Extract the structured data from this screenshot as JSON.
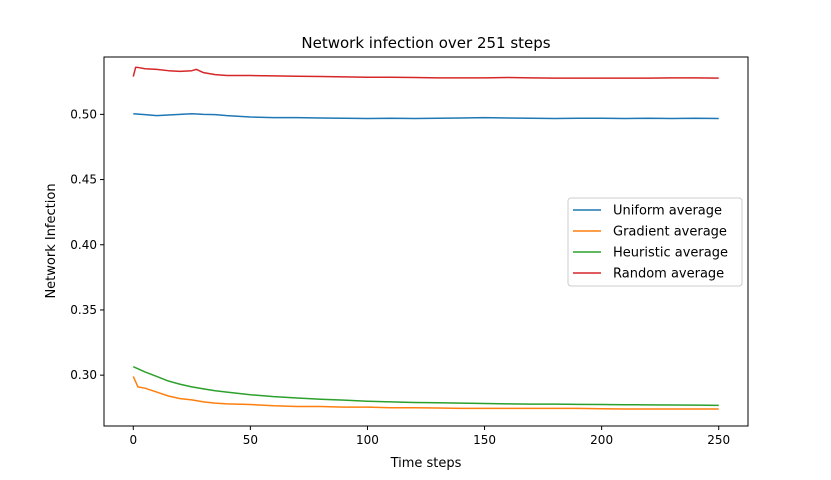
{
  "chart_data": {
    "type": "line",
    "title": "Network infection over 251 steps",
    "xlabel": "Time steps",
    "ylabel": "Network Infection",
    "xlim": [
      -12.5,
      262.5
    ],
    "ylim": [
      0.261,
      0.544
    ],
    "xticks": [
      0,
      50,
      100,
      150,
      200,
      250
    ],
    "xtick_labels": [
      "0",
      "50",
      "100",
      "150",
      "200",
      "250"
    ],
    "yticks": [
      0.3,
      0.35,
      0.4,
      0.45,
      0.5
    ],
    "ytick_labels": [
      "0.30",
      "0.35",
      "0.40",
      "0.45",
      "0.50"
    ],
    "grid": false,
    "legend_position": "center-right",
    "series": [
      {
        "name": "Uniform average",
        "color": "#1f77b4",
        "x": [
          0,
          5,
          10,
          15,
          20,
          25,
          30,
          35,
          40,
          50,
          60,
          70,
          80,
          90,
          100,
          110,
          120,
          130,
          140,
          150,
          160,
          170,
          180,
          190,
          200,
          210,
          220,
          230,
          240,
          250
        ],
        "y": [
          0.5005,
          0.4998,
          0.499,
          0.4995,
          0.5,
          0.5005,
          0.5,
          0.4998,
          0.499,
          0.498,
          0.4975,
          0.4975,
          0.4972,
          0.497,
          0.4968,
          0.497,
          0.4968,
          0.497,
          0.4972,
          0.4975,
          0.4972,
          0.497,
          0.4968,
          0.497,
          0.497,
          0.4968,
          0.497,
          0.4968,
          0.497,
          0.4968
        ]
      },
      {
        "name": "Gradient average",
        "color": "#ff7f0e",
        "x": [
          0,
          1,
          2,
          5,
          10,
          15,
          20,
          25,
          30,
          35,
          40,
          50,
          60,
          70,
          80,
          90,
          100,
          110,
          120,
          130,
          140,
          150,
          160,
          170,
          180,
          190,
          200,
          210,
          220,
          230,
          240,
          250
        ],
        "y": [
          0.299,
          0.295,
          0.291,
          0.29,
          0.287,
          0.284,
          0.282,
          0.281,
          0.2795,
          0.2785,
          0.278,
          0.2775,
          0.2765,
          0.276,
          0.276,
          0.2755,
          0.2755,
          0.275,
          0.275,
          0.2748,
          0.2745,
          0.2745,
          0.2745,
          0.2745,
          0.2745,
          0.2745,
          0.2742,
          0.274,
          0.274,
          0.274,
          0.274,
          0.274
        ]
      },
      {
        "name": "Heuristic average",
        "color": "#2ca02c",
        "x": [
          0,
          5,
          10,
          15,
          20,
          25,
          30,
          35,
          40,
          50,
          60,
          70,
          80,
          90,
          100,
          110,
          120,
          130,
          140,
          150,
          160,
          170,
          180,
          190,
          200,
          210,
          220,
          230,
          240,
          250
        ],
        "y": [
          0.3065,
          0.3025,
          0.299,
          0.2955,
          0.293,
          0.291,
          0.2895,
          0.288,
          0.287,
          0.285,
          0.2835,
          0.2825,
          0.2815,
          0.2808,
          0.28,
          0.2795,
          0.279,
          0.2788,
          0.2785,
          0.2783,
          0.278,
          0.2778,
          0.2778,
          0.2776,
          0.2775,
          0.2773,
          0.2772,
          0.2771,
          0.277,
          0.2768
        ]
      },
      {
        "name": "Random average",
        "color": "#d62728",
        "x": [
          0,
          1,
          2,
          5,
          10,
          15,
          20,
          25,
          27,
          30,
          35,
          40,
          50,
          60,
          70,
          80,
          90,
          100,
          110,
          120,
          130,
          140,
          150,
          160,
          170,
          180,
          190,
          200,
          210,
          220,
          230,
          240,
          250
        ],
        "y": [
          0.529,
          0.536,
          0.536,
          0.535,
          0.5345,
          0.5335,
          0.533,
          0.5335,
          0.5345,
          0.532,
          0.5305,
          0.5298,
          0.5298,
          0.5295,
          0.5292,
          0.529,
          0.5288,
          0.5285,
          0.5285,
          0.5283,
          0.528,
          0.528,
          0.528,
          0.5283,
          0.528,
          0.5278,
          0.5278,
          0.5278,
          0.5278,
          0.5278,
          0.528,
          0.528,
          0.5278
        ]
      }
    ]
  }
}
